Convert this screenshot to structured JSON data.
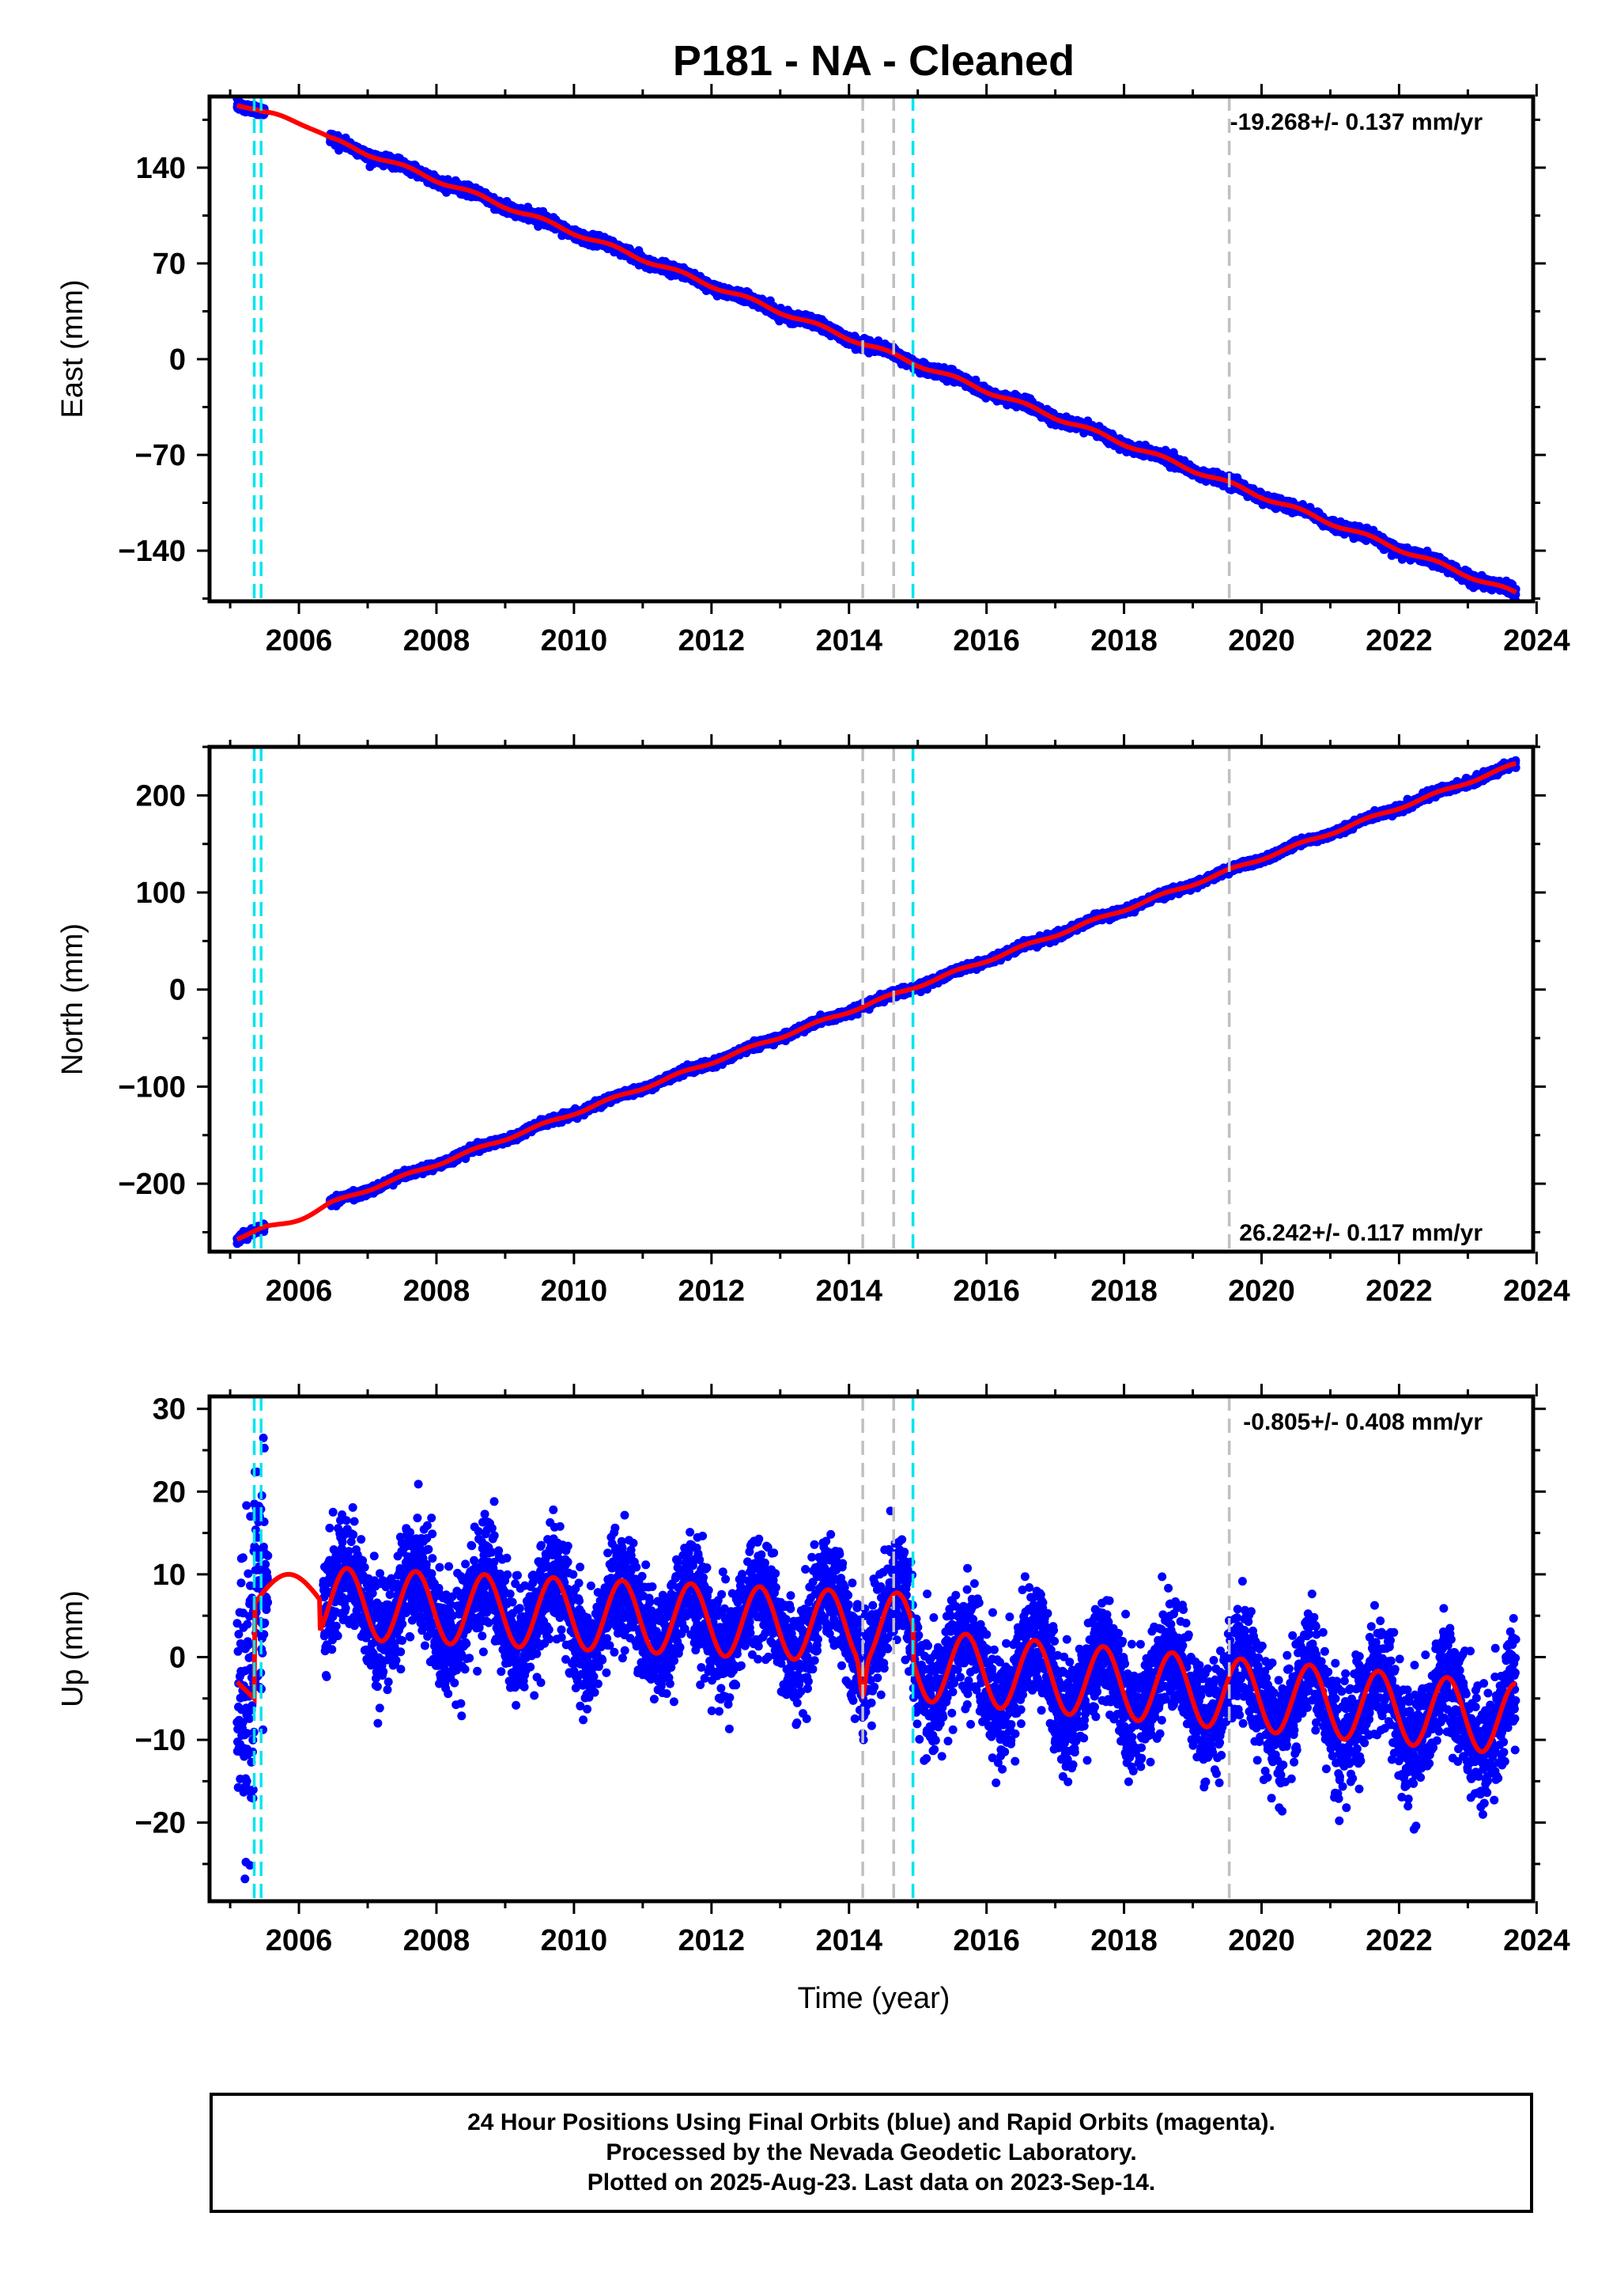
{
  "title": "P181  - NA - Cleaned",
  "xlabel": "Time (year)",
  "footer": {
    "line1": "24 Hour Positions Using Final Orbits (blue) and Rapid Orbits (magenta).",
    "line2": "Processed by the Nevada Geodetic Laboratory.",
    "line3": "Plotted on 2025-Aug-23. Last data on 2023-Sep-14."
  },
  "colors": {
    "final_orbits": "#0000ff",
    "rapid_orbits": "#ff00ff",
    "model_fit": "#ff0000",
    "equipment_change": "#00e5ee",
    "earthquake": "#c0c0c0",
    "axis": "#000000"
  },
  "chart_data": [
    {
      "type": "scatter",
      "id": "east",
      "ylabel": "East (mm)",
      "xlim": [
        2004.7,
        2023.95
      ],
      "ylim": [
        -177,
        192
      ],
      "xticks": [
        2006,
        2008,
        2010,
        2012,
        2014,
        2016,
        2018,
        2020,
        2022,
        2024
      ],
      "yticks": [
        -140,
        -70,
        0,
        70,
        140
      ],
      "rate_annotation": "-19.268+/- 0.137 mm/yr",
      "rate_position": "top-right",
      "first_epoch": 2005.1,
      "last_epoch": 2023.7,
      "rate_mm_per_yr": -19.268,
      "value_at_first_epoch": 187,
      "data_gap": [
        2005.5,
        2006.45
      ],
      "fit_bend": {
        "before": 2005.5,
        "after": 2006.45
      },
      "equipment_change_lines": [
        2005.35,
        2005.45,
        2014.93
      ],
      "earthquake_lines": [
        2014.2,
        2014.65,
        2019.53
      ],
      "series": [
        {
          "name": "Final Orbits",
          "color": "#0000ff"
        },
        {
          "name": "Model fit",
          "color": "#ff0000"
        }
      ]
    },
    {
      "type": "scatter",
      "id": "north",
      "ylabel": "North (mm)",
      "xlim": [
        2004.7,
        2023.95
      ],
      "ylim": [
        -270,
        250
      ],
      "xticks": [
        2006,
        2008,
        2010,
        2012,
        2014,
        2016,
        2018,
        2020,
        2022,
        2024
      ],
      "yticks": [
        -200,
        -100,
        0,
        100,
        200
      ],
      "rate_annotation": "26.242+/- 0.117 mm/yr",
      "rate_position": "bottom-right",
      "first_epoch": 2005.1,
      "last_epoch": 2023.7,
      "rate_mm_per_yr": 26.242,
      "value_at_first_epoch": -256,
      "data_gap": [
        2005.5,
        2006.45
      ],
      "fit_bend": {
        "before": 2005.5,
        "after": 2006.45
      },
      "equipment_change_lines": [
        2005.35,
        2005.45,
        2014.93
      ],
      "earthquake_lines": [
        2014.2,
        2014.65,
        2019.53
      ],
      "series": [
        {
          "name": "Final Orbits",
          "color": "#0000ff"
        },
        {
          "name": "Model fit",
          "color": "#ff0000"
        }
      ]
    },
    {
      "type": "scatter",
      "id": "up",
      "ylabel": "Up (mm)",
      "xlim": [
        2004.7,
        2023.95
      ],
      "ylim": [
        -29.5,
        31.5
      ],
      "xticks": [
        2006,
        2008,
        2010,
        2012,
        2014,
        2016,
        2018,
        2020,
        2022,
        2024
      ],
      "yticks": [
        -20,
        -10,
        0,
        10,
        20,
        30
      ],
      "rate_annotation": "-0.805+/- 0.408 mm/yr",
      "rate_position": "top-right",
      "first_epoch": 2005.1,
      "last_epoch": 2023.7,
      "equipment_change_lines": [
        2005.35,
        2005.45,
        2014.93
      ],
      "earthquake_lines": [
        2014.2,
        2014.65,
        2019.53
      ],
      "fit_model": {
        "annual_amplitude_mm": 4.3,
        "pre_2015_mean": [
          [
            2006.5,
            6.5
          ],
          [
            2014.6,
            3.5
          ]
        ],
        "post_2015_mean": [
          [
            2015.0,
            -1.0
          ],
          [
            2023.7,
            -7.5
          ]
        ]
      },
      "series": [
        {
          "name": "Final Orbits",
          "color": "#0000ff"
        },
        {
          "name": "Model fit",
          "color": "#ff0000"
        }
      ]
    }
  ]
}
